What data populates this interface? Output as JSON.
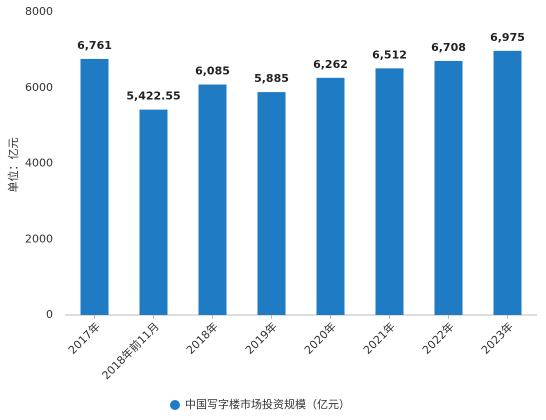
{
  "chart_data": {
    "type": "bar",
    "y_label": "单位：亿元",
    "categories": [
      "2017年",
      "2018年前11月",
      "2018年",
      "2019年",
      "2020年",
      "2021年",
      "2022年",
      "2023年"
    ],
    "series": [
      {
        "name": "中国写字楼市场投资规模（亿元）",
        "color": "#1f7bc4",
        "values": [
          6761,
          5422.55,
          6085,
          5885,
          6262,
          6512,
          6708,
          6975
        ],
        "value_labels": [
          "6,761",
          "5,422.55",
          "6,085",
          "5,885",
          "6,262",
          "6,512",
          "6,708",
          "6,975"
        ]
      }
    ],
    "ylim": [
      0,
      8000
    ],
    "yticks": [
      0,
      2000,
      4000,
      6000,
      8000
    ],
    "grid": false
  }
}
